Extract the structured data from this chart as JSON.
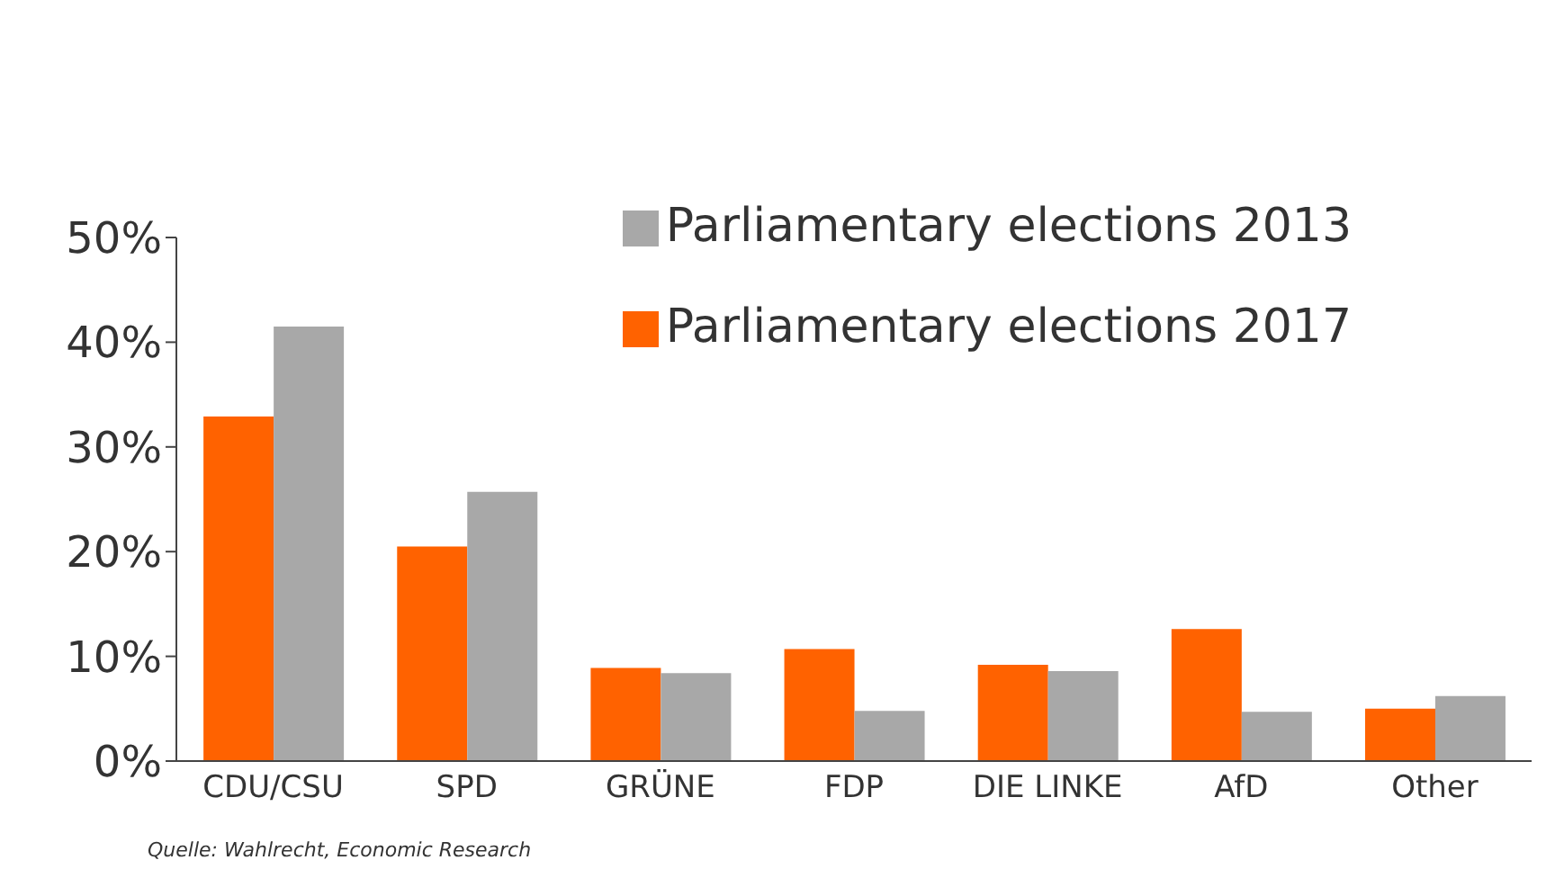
{
  "chart_data": {
    "type": "bar",
    "categories": [
      "CDU/CSU",
      "SPD",
      "GRÜNE",
      "FDP",
      "DIE LINKE",
      "AfD",
      "Other"
    ],
    "series": [
      {
        "name": "Parliamentary elections 2017",
        "color": "#ff6200",
        "values": [
          32.9,
          20.5,
          8.9,
          10.7,
          9.2,
          12.6,
          5.0
        ]
      },
      {
        "name": "Parliamentary elections 2013",
        "color": "#a8a8a8",
        "values": [
          41.5,
          25.7,
          8.4,
          4.8,
          8.6,
          4.7,
          6.2
        ]
      }
    ],
    "ylim": [
      0,
      50
    ],
    "yticks": [
      {
        "value": 0,
        "label": "0%"
      },
      {
        "value": 10,
        "label": "10%"
      },
      {
        "value": 20,
        "label": "20%"
      },
      {
        "value": 30,
        "label": "30%"
      },
      {
        "value": 40,
        "label": "40%"
      },
      {
        "value": 50,
        "label": "50%"
      }
    ],
    "legend": "top right",
    "grid": false,
    "annotations": [
      "Quelle: Wahlrecht, Economic Research"
    ]
  }
}
